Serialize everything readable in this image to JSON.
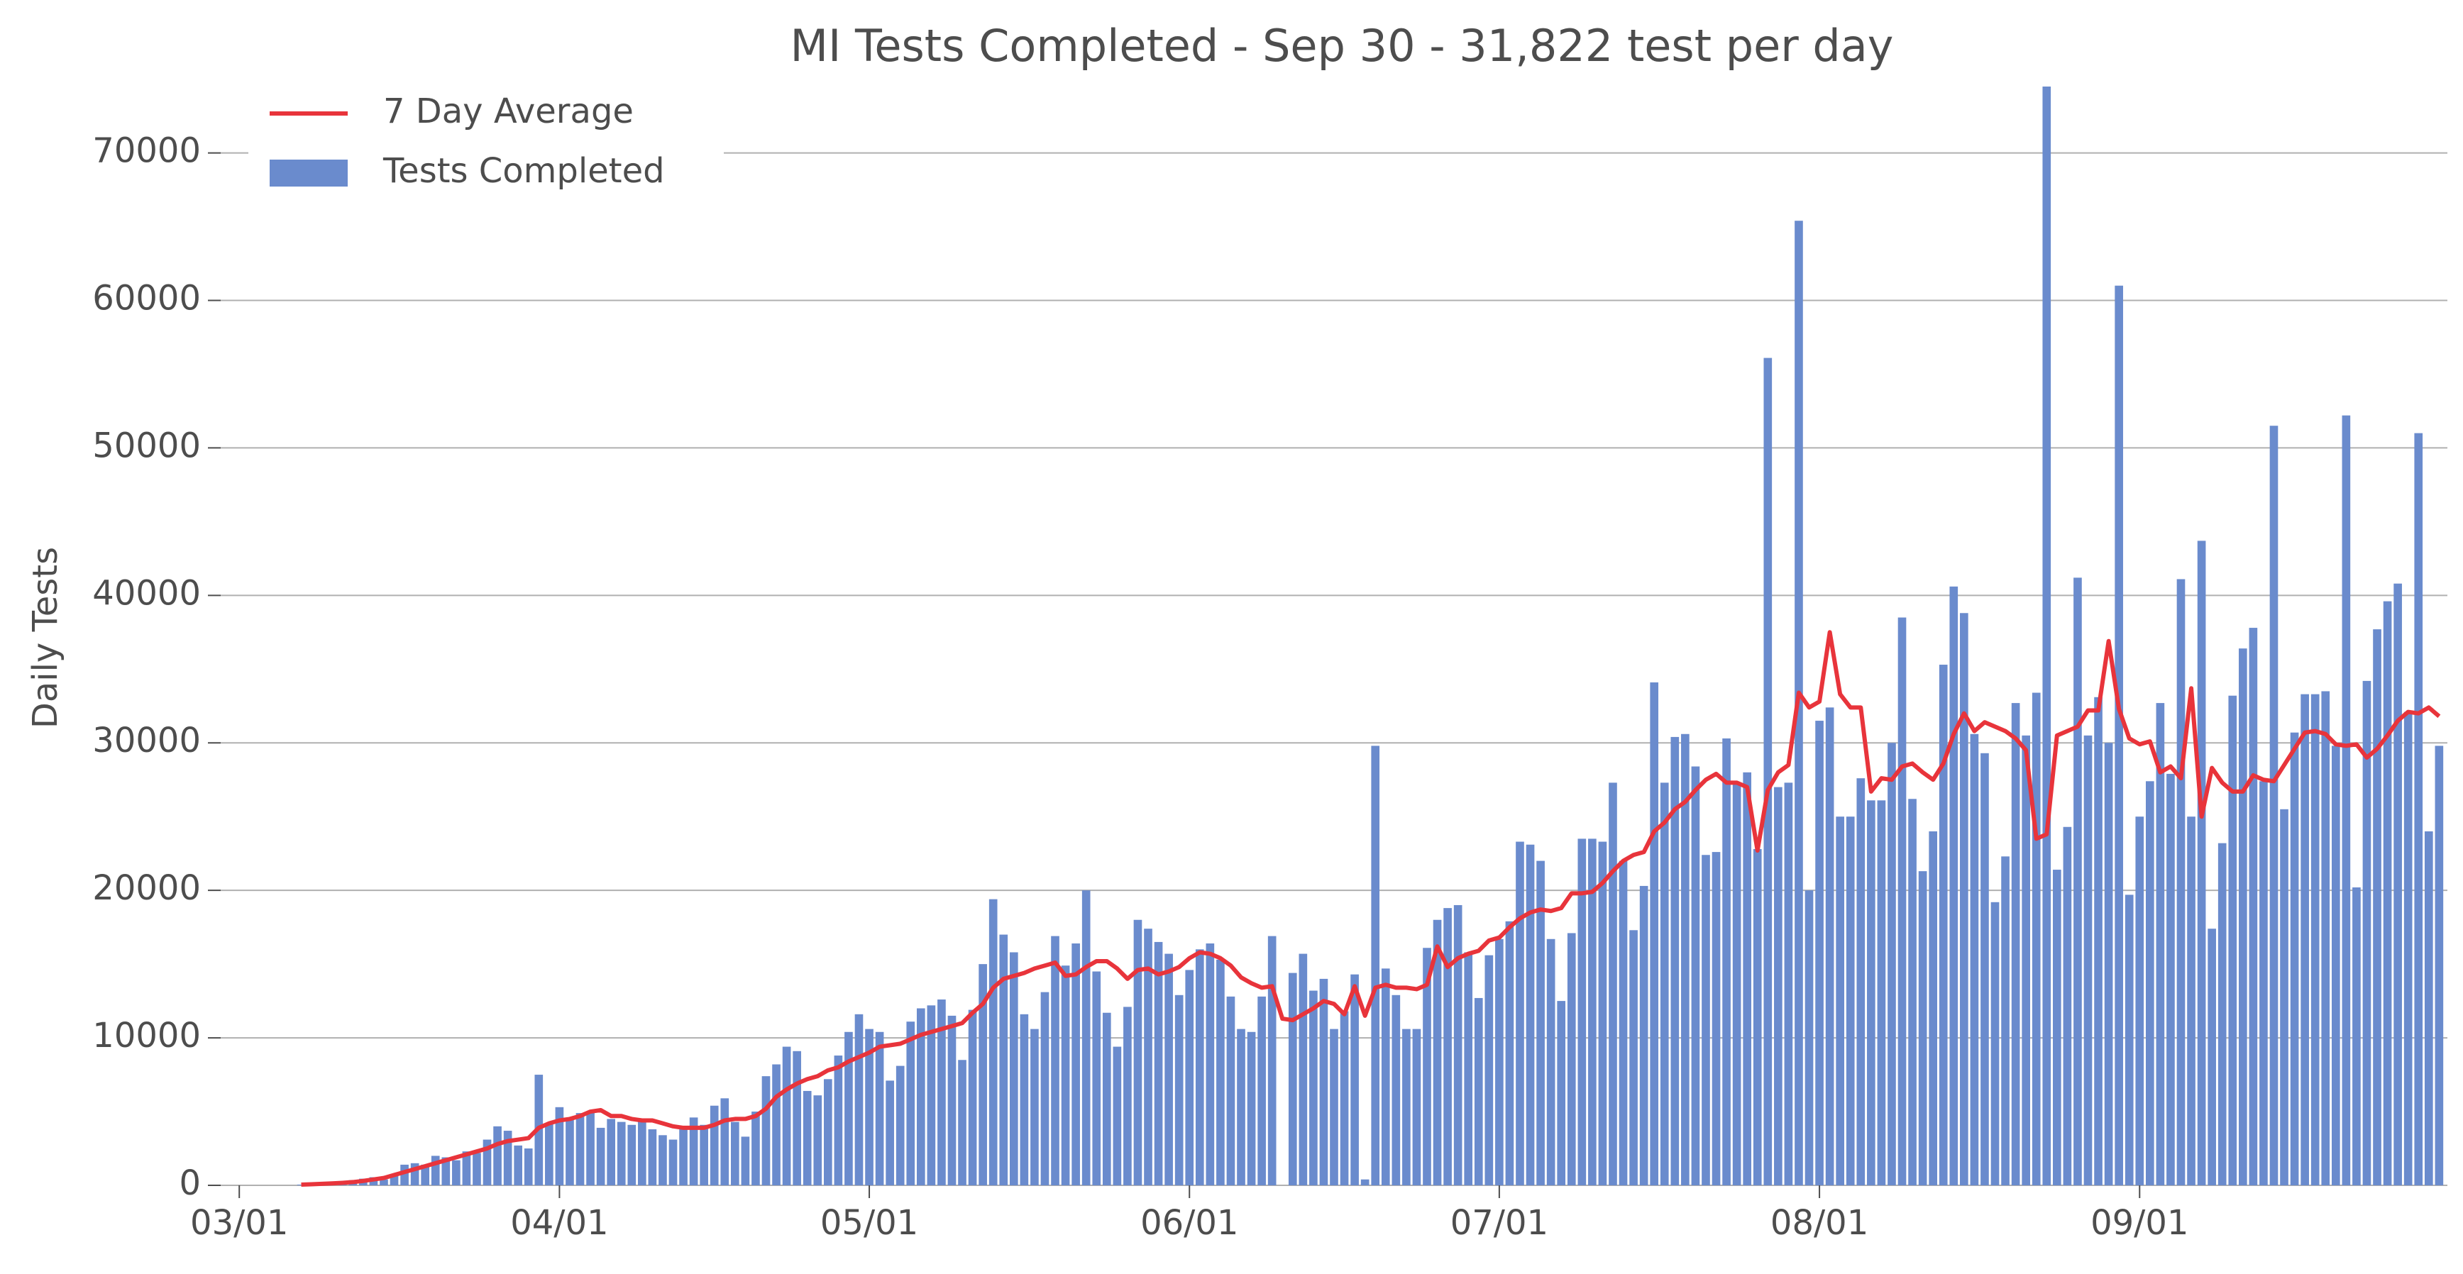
{
  "chart_data": {
    "type": "bar",
    "title": "MI Tests Completed - Sep 30 - 31,822 test per day",
    "y_label": "Daily Tests",
    "legend": "upper left",
    "grid": true,
    "xlim": [
      -1.8,
      213.8
    ],
    "xticks": [
      {
        "value": 0,
        "label": "03/01"
      },
      {
        "value": 31,
        "label": "04/01"
      },
      {
        "value": 61,
        "label": "05/01"
      },
      {
        "value": 92,
        "label": "06/01"
      },
      {
        "value": 122,
        "label": "07/01"
      },
      {
        "value": 153,
        "label": "08/01"
      },
      {
        "value": 184,
        "label": "09/01"
      }
    ],
    "ylim": [
      0,
      74500
    ],
    "yticks": [
      0,
      10000,
      20000,
      30000,
      40000,
      50000,
      60000,
      70000
    ],
    "x": [
      6,
      7,
      8,
      9,
      10,
      11,
      12,
      13,
      14,
      15,
      16,
      17,
      18,
      19,
      20,
      21,
      22,
      23,
      24,
      25,
      26,
      27,
      28,
      29,
      30,
      31,
      32,
      33,
      34,
      35,
      36,
      37,
      38,
      39,
      40,
      41,
      42,
      43,
      44,
      45,
      46,
      47,
      48,
      49,
      50,
      51,
      52,
      53,
      54,
      55,
      56,
      57,
      58,
      59,
      60,
      61,
      62,
      63,
      64,
      65,
      66,
      67,
      68,
      69,
      70,
      71,
      72,
      73,
      74,
      75,
      76,
      77,
      78,
      79,
      80,
      81,
      82,
      83,
      84,
      85,
      86,
      87,
      88,
      89,
      90,
      91,
      92,
      93,
      94,
      95,
      96,
      97,
      98,
      99,
      100,
      101,
      102,
      103,
      104,
      105,
      106,
      107,
      108,
      109,
      110,
      111,
      112,
      113,
      114,
      115,
      116,
      117,
      118,
      119,
      120,
      121,
      122,
      123,
      124,
      125,
      126,
      127,
      128,
      129,
      130,
      131,
      132,
      133,
      134,
      135,
      136,
      137,
      138,
      139,
      140,
      141,
      142,
      143,
      144,
      145,
      146,
      147,
      148,
      149,
      150,
      151,
      152,
      153,
      154,
      155,
      156,
      157,
      158,
      159,
      160,
      161,
      162,
      163,
      164,
      165,
      166,
      167,
      168,
      169,
      170,
      171,
      172,
      173,
      174,
      175,
      176,
      177,
      178,
      179,
      180,
      181,
      182,
      183,
      184,
      185,
      186,
      187,
      188,
      189,
      190,
      191,
      192,
      193,
      194,
      195,
      196,
      197,
      198,
      199,
      200,
      201,
      202,
      203,
      204,
      205,
      206,
      207,
      208,
      209,
      210,
      211,
      212,
      213
    ],
    "series": [
      {
        "name": "Tests Completed",
        "type": "bar",
        "color": "#6a8bcd",
        "values": [
          50,
          80,
          120,
          180,
          250,
          350,
          450,
          550,
          400,
          700,
          1400,
          1500,
          1400,
          2000,
          1900,
          1700,
          2300,
          2200,
          3100,
          4000,
          3700,
          2700,
          2500,
          7500,
          4200,
          5300,
          4600,
          4900,
          5000,
          3900,
          4500,
          4300,
          4100,
          4400,
          3800,
          3400,
          3100,
          3800,
          4600,
          4100,
          5400,
          5900,
          4300,
          3300,
          5000,
          7400,
          8200,
          9400,
          9100,
          6400,
          6100,
          7200,
          8800,
          10400,
          11600,
          10600,
          10400,
          7100,
          8100,
          11100,
          12000,
          12200,
          12600,
          11500,
          8500,
          11900,
          15000,
          19400,
          17000,
          15800,
          11600,
          10600,
          13100,
          16900,
          14900,
          16400,
          20000,
          14500,
          11700,
          9400,
          12100,
          18000,
          17400,
          16500,
          15700,
          12900,
          14600,
          16000,
          16400,
          15300,
          12800,
          10600,
          10400,
          12800,
          16900,
          0,
          14400,
          15700,
          13200,
          14000,
          10600,
          11800,
          14300,
          400,
          29800,
          14700,
          12900,
          10600,
          10600,
          16100,
          18000,
          18800,
          19000,
          15800,
          12700,
          15600,
          16700,
          17900,
          23300,
          23100,
          22000,
          16700,
          12500,
          17100,
          23500,
          23500,
          23300,
          27300,
          22000,
          17300,
          20300,
          34100,
          27300,
          30400,
          30600,
          28400,
          22400,
          22600,
          30300,
          27300,
          28000,
          22800,
          56100,
          27000,
          27300,
          65400,
          20000,
          31500,
          32400,
          25000,
          25000,
          27600,
          26100,
          26100,
          30000,
          38500,
          26200,
          21300,
          24000,
          35300,
          40600,
          38800,
          30600,
          29300,
          19200,
          22300,
          32700,
          30500,
          33400,
          74500,
          21400,
          24300,
          41200,
          30500,
          33100,
          30000,
          61000,
          19700,
          25000,
          27400,
          32700,
          27900,
          41100,
          25000,
          43700,
          17400,
          23200,
          33200,
          36400,
          37800,
          27400,
          51500,
          25500,
          30700,
          33300,
          33300,
          33500,
          29800,
          52200,
          20200,
          34200,
          37700,
          39600,
          40800,
          32100,
          51000,
          24000,
          29800
        ]
      },
      {
        "name": "7 Day Average",
        "type": "line",
        "color": "#e8343b",
        "values": [
          50,
          70,
          100,
          130,
          170,
          220,
          300,
          400,
          500,
          700,
          900,
          1100,
          1300,
          1500,
          1700,
          1900,
          2100,
          2300,
          2500,
          2800,
          3000,
          3100,
          3200,
          3900,
          4200,
          4400,
          4500,
          4700,
          5000,
          5100,
          4700,
          4700,
          4500,
          4400,
          4400,
          4200,
          4000,
          3900,
          3900,
          3900,
          4100,
          4400,
          4500,
          4500,
          4700,
          5200,
          6000,
          6500,
          6900,
          7200,
          7400,
          7800,
          8000,
          8400,
          8700,
          9000,
          9400,
          9500,
          9600,
          9900,
          10200,
          10400,
          10600,
          10800,
          11000,
          11700,
          12300,
          13400,
          14000,
          14200,
          14400,
          14700,
          14900,
          15100,
          14200,
          14300,
          14800,
          15200,
          15200,
          14700,
          14000,
          14600,
          14700,
          14300,
          14500,
          14800,
          15400,
          15800,
          15700,
          15400,
          14900,
          14100,
          13700,
          13400,
          13500,
          11300,
          11200,
          11600,
          12000,
          12500,
          12300,
          11600,
          13500,
          11500,
          13400,
          13600,
          13400,
          13400,
          13300,
          13600,
          16200,
          14800,
          15400,
          15700,
          15900,
          16600,
          16800,
          17500,
          18100,
          18500,
          18700,
          18600,
          18800,
          19800,
          19800,
          19900,
          20500,
          21300,
          22000,
          22400,
          22600,
          24000,
          24600,
          25500,
          26000,
          26800,
          27500,
          27900,
          27300,
          27300,
          27000,
          22700,
          26800,
          28000,
          28500,
          33400,
          32400,
          32800,
          37500,
          33300,
          32400,
          32400,
          26700,
          27600,
          27500,
          28400,
          28600,
          28000,
          27500,
          28600,
          30600,
          32000,
          30800,
          31400,
          31100,
          30800,
          30300,
          29500,
          23500,
          23800,
          30500,
          30800,
          31100,
          32200,
          32200,
          36900,
          32300,
          30300,
          29900,
          30100,
          28000,
          28400,
          27600,
          33700,
          25000,
          28300,
          27300,
          26700,
          26700,
          27800,
          27500,
          27400,
          28500,
          29600,
          30700,
          30800,
          30600,
          29900,
          29800,
          29900,
          29000,
          29600,
          30500,
          31500,
          32100,
          32000,
          32400,
          31800
        ]
      }
    ]
  }
}
